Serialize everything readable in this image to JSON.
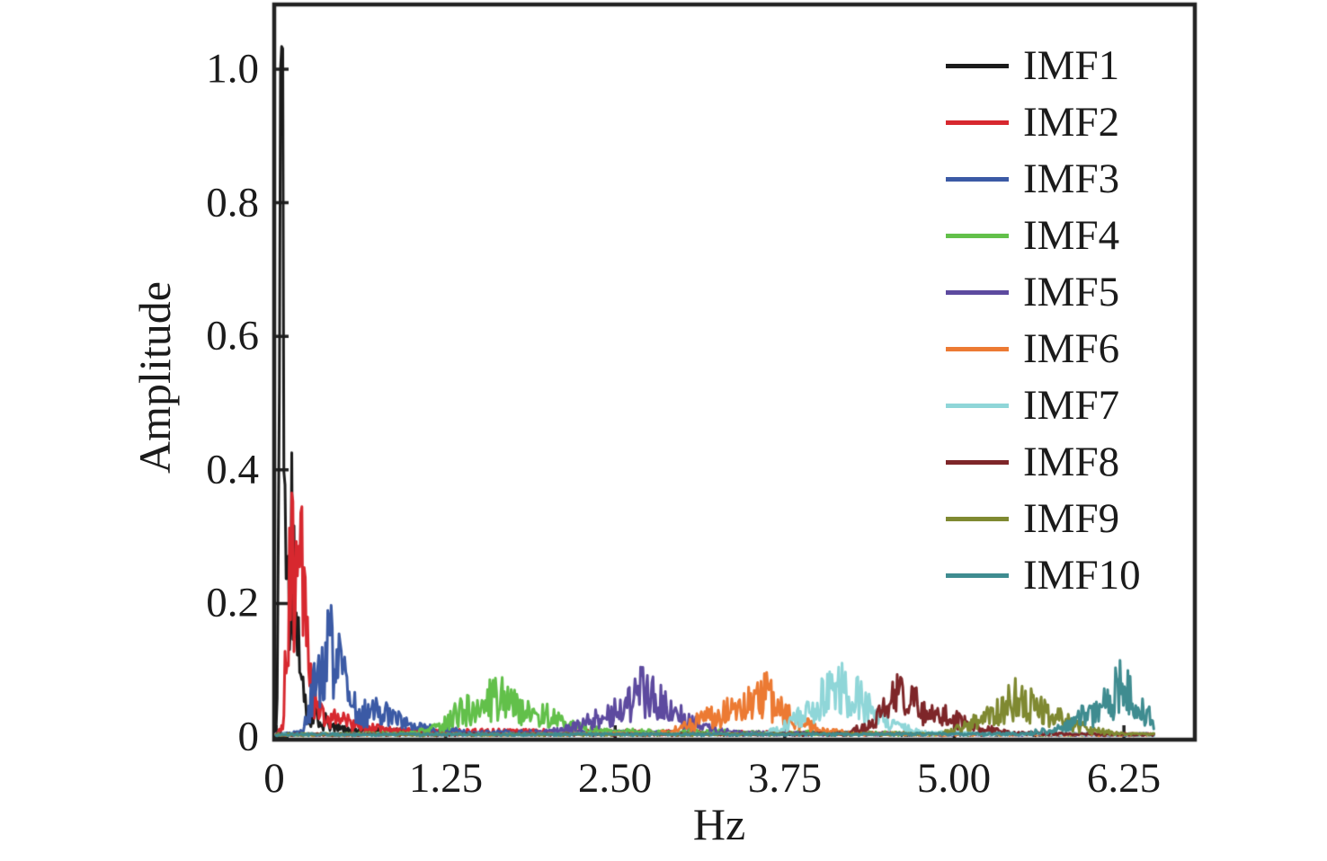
{
  "chart_data": {
    "type": "line",
    "title": "",
    "xlabel": "Hz",
    "ylabel": "Amplitude",
    "xlim": [
      0,
      6.78
    ],
    "ylim": [
      0,
      1.1
    ],
    "grid": false,
    "legend_position": "upper right",
    "axis_color": "#222222",
    "xtick_labels": [
      "0",
      "1.25",
      "2.50",
      "3.75",
      "5.00",
      "6.25"
    ],
    "xtick_values": [
      0,
      1.25,
      2.5,
      3.75,
      5.0,
      6.25
    ],
    "ytick_labels": [
      "1.0",
      "0.8",
      "0.6",
      "0.4",
      "0.2",
      "0"
    ],
    "ytick_values": [
      1.0,
      0.8,
      0.6,
      0.4,
      0.2,
      0
    ],
    "series": [
      {
        "name": "IMF1",
        "color": "#1b1b1b",
        "peak_hz": 0.04,
        "peak_amplitude": 1.0,
        "envelope": [
          [
            0,
            0.01
          ],
          [
            0.015,
            0.3
          ],
          [
            0.03,
            1.0
          ],
          [
            0.05,
            1.0
          ],
          [
            0.07,
            0.5
          ],
          [
            0.1,
            0.45
          ],
          [
            0.14,
            0.3
          ],
          [
            0.18,
            0.1
          ],
          [
            0.25,
            0.05
          ],
          [
            0.5,
            0.015
          ],
          [
            1.5,
            0.006
          ],
          [
            6.47,
            0.004
          ]
        ]
      },
      {
        "name": "IMF2",
        "color": "#d7282f",
        "peak_hz": 0.12,
        "peak_amplitude": 0.37,
        "envelope": [
          [
            0,
            0.005
          ],
          [
            0.05,
            0.02
          ],
          [
            0.08,
            0.22
          ],
          [
            0.11,
            0.37
          ],
          [
            0.15,
            0.34
          ],
          [
            0.19,
            0.35
          ],
          [
            0.23,
            0.18
          ],
          [
            0.27,
            0.07
          ],
          [
            0.35,
            0.04
          ],
          [
            0.5,
            0.035
          ],
          [
            0.65,
            0.02
          ],
          [
            1.0,
            0.012
          ],
          [
            6.47,
            0.004
          ]
        ]
      },
      {
        "name": "IMF3",
        "color": "#3b5aa5",
        "peak_hz": 0.42,
        "peak_amplitude": 0.19,
        "envelope": [
          [
            0,
            0.004
          ],
          [
            0.2,
            0.01
          ],
          [
            0.28,
            0.1
          ],
          [
            0.33,
            0.13
          ],
          [
            0.38,
            0.19
          ],
          [
            0.45,
            0.17
          ],
          [
            0.5,
            0.16
          ],
          [
            0.55,
            0.07
          ],
          [
            0.62,
            0.05
          ],
          [
            0.72,
            0.055
          ],
          [
            0.85,
            0.045
          ],
          [
            0.95,
            0.03
          ],
          [
            1.1,
            0.02
          ],
          [
            1.4,
            0.01
          ],
          [
            6.47,
            0.004
          ]
        ]
      },
      {
        "name": "IMF4",
        "color": "#62c04a",
        "peak_hz": 1.63,
        "peak_amplitude": 0.085,
        "envelope": [
          [
            0,
            0.003
          ],
          [
            1.0,
            0.008
          ],
          [
            1.2,
            0.02
          ],
          [
            1.35,
            0.055
          ],
          [
            1.5,
            0.06
          ],
          [
            1.6,
            0.085
          ],
          [
            1.7,
            0.08
          ],
          [
            1.85,
            0.055
          ],
          [
            2.0,
            0.045
          ],
          [
            2.15,
            0.025
          ],
          [
            2.4,
            0.012
          ],
          [
            6.47,
            0.003
          ]
        ]
      },
      {
        "name": "IMF5",
        "color": "#5d4a9f",
        "peak_hz": 2.7,
        "peak_amplitude": 0.105,
        "envelope": [
          [
            0,
            0.003
          ],
          [
            1.9,
            0.006
          ],
          [
            2.2,
            0.02
          ],
          [
            2.4,
            0.045
          ],
          [
            2.55,
            0.06
          ],
          [
            2.7,
            0.105
          ],
          [
            2.8,
            0.09
          ],
          [
            2.9,
            0.065
          ],
          [
            3.0,
            0.04
          ],
          [
            3.15,
            0.02
          ],
          [
            3.4,
            0.008
          ],
          [
            6.47,
            0.003
          ]
        ]
      },
      {
        "name": "IMF6",
        "color": "#ec7a33",
        "peak_hz": 3.57,
        "peak_amplitude": 0.095,
        "envelope": [
          [
            0,
            0.003
          ],
          [
            2.8,
            0.006
          ],
          [
            3.0,
            0.02
          ],
          [
            3.2,
            0.045
          ],
          [
            3.35,
            0.055
          ],
          [
            3.5,
            0.07
          ],
          [
            3.6,
            0.095
          ],
          [
            3.7,
            0.06
          ],
          [
            3.85,
            0.035
          ],
          [
            4.0,
            0.015
          ],
          [
            4.3,
            0.006
          ],
          [
            6.47,
            0.003
          ]
        ]
      },
      {
        "name": "IMF7",
        "color": "#8fd6d8",
        "peak_hz": 4.15,
        "peak_amplitude": 0.105,
        "envelope": [
          [
            0,
            0.003
          ],
          [
            3.6,
            0.006
          ],
          [
            3.8,
            0.03
          ],
          [
            3.95,
            0.06
          ],
          [
            4.05,
            0.09
          ],
          [
            4.15,
            0.105
          ],
          [
            4.3,
            0.08
          ],
          [
            4.45,
            0.045
          ],
          [
            4.6,
            0.02
          ],
          [
            4.8,
            0.008
          ],
          [
            6.47,
            0.003
          ]
        ]
      },
      {
        "name": "IMF8",
        "color": "#7e2629",
        "peak_hz": 4.58,
        "peak_amplitude": 0.09,
        "envelope": [
          [
            0,
            0.003
          ],
          [
            4.2,
            0.006
          ],
          [
            4.4,
            0.03
          ],
          [
            4.5,
            0.07
          ],
          [
            4.6,
            0.09
          ],
          [
            4.7,
            0.075
          ],
          [
            4.8,
            0.055
          ],
          [
            4.95,
            0.045
          ],
          [
            5.05,
            0.035
          ],
          [
            5.2,
            0.02
          ],
          [
            5.4,
            0.008
          ],
          [
            6.47,
            0.003
          ]
        ]
      },
      {
        "name": "IMF9",
        "color": "#7f8931",
        "peak_hz": 5.47,
        "peak_amplitude": 0.088,
        "envelope": [
          [
            0,
            0.003
          ],
          [
            4.9,
            0.006
          ],
          [
            5.1,
            0.025
          ],
          [
            5.3,
            0.05
          ],
          [
            5.45,
            0.088
          ],
          [
            5.55,
            0.07
          ],
          [
            5.7,
            0.05
          ],
          [
            5.85,
            0.03
          ],
          [
            6.0,
            0.015
          ],
          [
            6.2,
            0.008
          ],
          [
            6.47,
            0.004
          ]
        ]
      },
      {
        "name": "IMF10",
        "color": "#3f8c90",
        "peak_hz": 6.2,
        "peak_amplitude": 0.115,
        "envelope": [
          [
            0,
            0.003
          ],
          [
            5.5,
            0.006
          ],
          [
            5.8,
            0.02
          ],
          [
            5.95,
            0.045
          ],
          [
            6.05,
            0.055
          ],
          [
            6.15,
            0.08
          ],
          [
            6.22,
            0.115
          ],
          [
            6.3,
            0.09
          ],
          [
            6.38,
            0.06
          ],
          [
            6.45,
            0.05
          ],
          [
            6.47,
            0.02
          ]
        ]
      }
    ]
  }
}
